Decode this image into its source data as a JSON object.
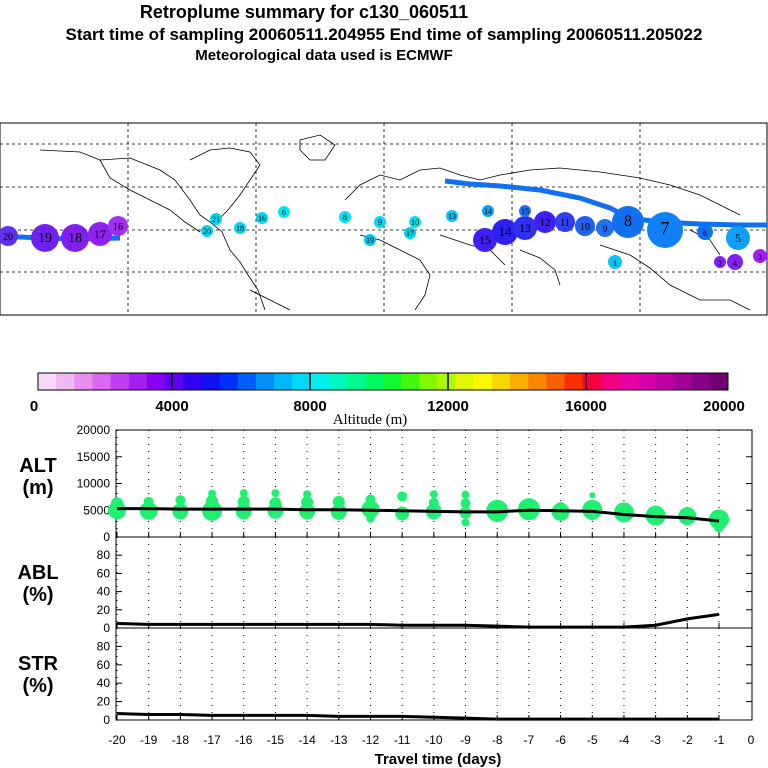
{
  "header": {
    "title": "Retroplume summary for c130_060511",
    "line2": "Start time of sampling 20060511.204955     End time of sampling 20060511.205022",
    "line3": "Meteorological data used is ECMWF"
  },
  "colorbar": {
    "label": "Altitude (m)",
    "ticks": [
      "0",
      "4000",
      "8000",
      "12000",
      "16000",
      "20000"
    ],
    "colors": [
      "#f8d8f8",
      "#f0b8f0",
      "#e890f0",
      "#d868f0",
      "#c040f0",
      "#a020f0",
      "#8800f0",
      "#6000f0",
      "#3000f0",
      "#1010f0",
      "#0030f8",
      "#0060f8",
      "#0090f8",
      "#00b8f8",
      "#00d8f8",
      "#00f0f0",
      "#00f8c0",
      "#00f890",
      "#00f860",
      "#10f830",
      "#40f810",
      "#80f800",
      "#b0f800",
      "#e0f800",
      "#f8f800",
      "#f8d800",
      "#f8b000",
      "#f88800",
      "#f86000",
      "#f83000",
      "#f80040",
      "#f00080",
      "#e800a0",
      "#d800a8",
      "#c000a0",
      "#a00098",
      "#880088",
      "#700070"
    ]
  },
  "chart_data": [
    {
      "type": "map",
      "title": "Retroplume summary for c130_060511",
      "trajectory_labels": [
        "20",
        "19",
        "18",
        "17",
        "16",
        "15",
        "14",
        "13",
        "12",
        "11",
        "10",
        "9",
        "8",
        "7",
        "6",
        "5",
        "4",
        "3",
        "2",
        "1"
      ],
      "cluster_labels": [
        "6",
        "8",
        "9",
        "10",
        "13",
        "14",
        "15",
        "21",
        "20",
        "19",
        "18",
        "17",
        "16"
      ]
    },
    {
      "type": "scatter",
      "panel": "ALT",
      "ylabel": "ALT (m)",
      "ylabel_top": "ALT",
      "ylabel_bottom": "(m)",
      "ylim": [
        0,
        20000
      ],
      "yticks": [
        "20000",
        "15000",
        "10000",
        "5000",
        "0"
      ],
      "points": [
        {
          "x": -20,
          "y": 5000
        },
        {
          "x": -20,
          "y": 6300
        },
        {
          "x": -19,
          "y": 4900
        },
        {
          "x": -19,
          "y": 6600
        },
        {
          "x": -18,
          "y": 4800
        },
        {
          "x": -18,
          "y": 6900
        },
        {
          "x": -17,
          "y": 4900
        },
        {
          "x": -17,
          "y": 6700
        },
        {
          "x": -17,
          "y": 8100
        },
        {
          "x": -16,
          "y": 4800
        },
        {
          "x": -16,
          "y": 6600
        },
        {
          "x": -16,
          "y": 8200
        },
        {
          "x": -15,
          "y": 4900
        },
        {
          "x": -15,
          "y": 6300
        },
        {
          "x": -15,
          "y": 8200
        },
        {
          "x": -14,
          "y": 4800
        },
        {
          "x": -14,
          "y": 6500
        },
        {
          "x": -14,
          "y": 8000
        },
        {
          "x": -13,
          "y": 4700
        },
        {
          "x": -13,
          "y": 6600
        },
        {
          "x": -12,
          "y": 5200
        },
        {
          "x": -12,
          "y": 3400
        },
        {
          "x": -12,
          "y": 7000
        },
        {
          "x": -11,
          "y": 4400
        },
        {
          "x": -11,
          "y": 7600
        },
        {
          "x": -10,
          "y": 4800
        },
        {
          "x": -10,
          "y": 6400
        },
        {
          "x": -10,
          "y": 8000
        },
        {
          "x": -9,
          "y": 4500
        },
        {
          "x": -9,
          "y": 6300
        },
        {
          "x": -9,
          "y": 2700
        },
        {
          "x": -9,
          "y": 7900
        },
        {
          "x": -8,
          "y": 4900
        },
        {
          "x": -8,
          "y": 5600
        },
        {
          "x": -7,
          "y": 5200
        },
        {
          "x": -7,
          "y": 5800
        },
        {
          "x": -6,
          "y": 4700
        },
        {
          "x": -6,
          "y": 5400
        },
        {
          "x": -5,
          "y": 5100
        },
        {
          "x": -5,
          "y": 3900
        },
        {
          "x": -5,
          "y": 7800
        },
        {
          "x": -4,
          "y": 4600
        },
        {
          "x": -3,
          "y": 4000
        },
        {
          "x": -2,
          "y": 3900
        },
        {
          "x": -1,
          "y": 3300
        },
        {
          "x": -1,
          "y": 1800
        }
      ],
      "sizes": [
        9,
        6,
        9,
        5,
        8,
        5,
        10,
        6,
        4,
        8,
        6,
        4,
        8,
        6,
        4,
        8,
        6,
        4,
        8,
        6,
        9,
        4,
        5,
        7,
        5,
        8,
        5,
        4,
        6,
        5,
        4,
        4,
        11,
        6,
        11,
        6,
        9,
        6,
        10,
        4,
        3,
        10,
        10,
        9,
        10,
        5
      ],
      "line_x": [
        -20,
        -19,
        -18,
        -17,
        -16,
        -15,
        -14,
        -13,
        -12,
        -11,
        -10,
        -9,
        -8,
        -7,
        -6,
        -5,
        -4,
        -3,
        -2,
        -1
      ],
      "line_y": [
        5300,
        5300,
        5200,
        5200,
        5200,
        5200,
        5100,
        5100,
        5000,
        4900,
        4800,
        4700,
        4700,
        5000,
        4900,
        4800,
        4200,
        3800,
        3600,
        3000
      ]
    },
    {
      "type": "line",
      "panel": "ABL",
      "ylabel": "ABL (%)",
      "ylabel_top": "ABL",
      "ylabel_bottom": "(%)",
      "ylim": [
        0,
        100
      ],
      "yticks": [
        "80",
        "60",
        "40",
        "20",
        "0"
      ],
      "x": [
        -20,
        -19,
        -18,
        -17,
        -16,
        -15,
        -14,
        -13,
        -12,
        -11,
        -10,
        -9,
        -8,
        -7,
        -6,
        -5,
        -4,
        -3,
        -2,
        -1
      ],
      "values": [
        5,
        4,
        4,
        4,
        4,
        4,
        4,
        4,
        4,
        3,
        3,
        3,
        2,
        1,
        1,
        1,
        1,
        3,
        10,
        15
      ]
    },
    {
      "type": "line",
      "panel": "STR",
      "ylabel": "STR (%)",
      "ylabel_top": "STR",
      "ylabel_bottom": "(%)",
      "ylim": [
        0,
        100
      ],
      "yticks": [
        "80",
        "60",
        "40",
        "20",
        "0"
      ],
      "x": [
        -20,
        -19,
        -18,
        -17,
        -16,
        -15,
        -14,
        -13,
        -12,
        -11,
        -10,
        -9,
        -8,
        -7,
        -6,
        -5,
        -4,
        -3,
        -2,
        -1
      ],
      "values": [
        7,
        6,
        6,
        5,
        5,
        5,
        5,
        4,
        4,
        4,
        3,
        2,
        1,
        1,
        1,
        1,
        1,
        1,
        1,
        1
      ],
      "xlabel": "Travel time (days)",
      "xticks": [
        "-20",
        "-19",
        "-18",
        "-17",
        "-16",
        "-15",
        "-14",
        "-13",
        "-12",
        "-11",
        "-10",
        "-9",
        "-8",
        "-7",
        "-6",
        "-5",
        "-4",
        "-3",
        "-2",
        "-1",
        "0"
      ]
    }
  ]
}
